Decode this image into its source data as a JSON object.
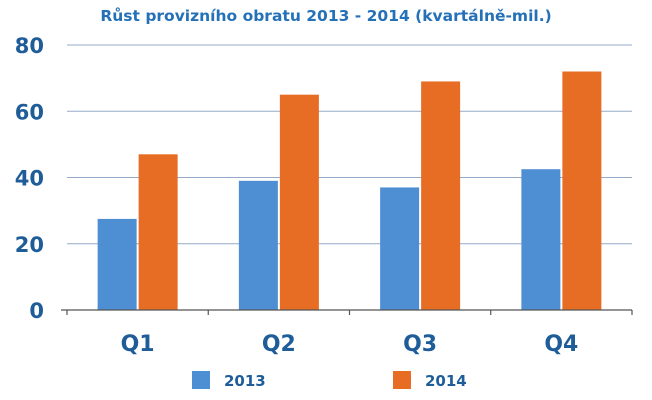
{
  "chart_data": {
    "type": "bar",
    "title": "Růst provizního obratu 2013 - 2014 (kvartálně-mil.)",
    "xlabel": "",
    "ylabel": "",
    "categories": [
      "Q1",
      "Q2",
      "Q3",
      "Q4"
    ],
    "series": [
      {
        "name": "2013",
        "values": [
          27.5,
          39,
          37,
          42.5
        ]
      },
      {
        "name": "2014",
        "values": [
          47,
          65,
          69,
          72
        ]
      }
    ],
    "ylim": [
      0,
      80
    ],
    "yticks": [
      "0",
      "20",
      "40",
      "60",
      "80"
    ],
    "grid": true,
    "legend": "bottom"
  },
  "colors": {
    "title": "#2471b7",
    "axis_text": "#1f5d99",
    "grid": "#95a9c9",
    "axis": "#555555",
    "series_2013": "#4e8ed3",
    "series_2014": "#e76c24"
  }
}
